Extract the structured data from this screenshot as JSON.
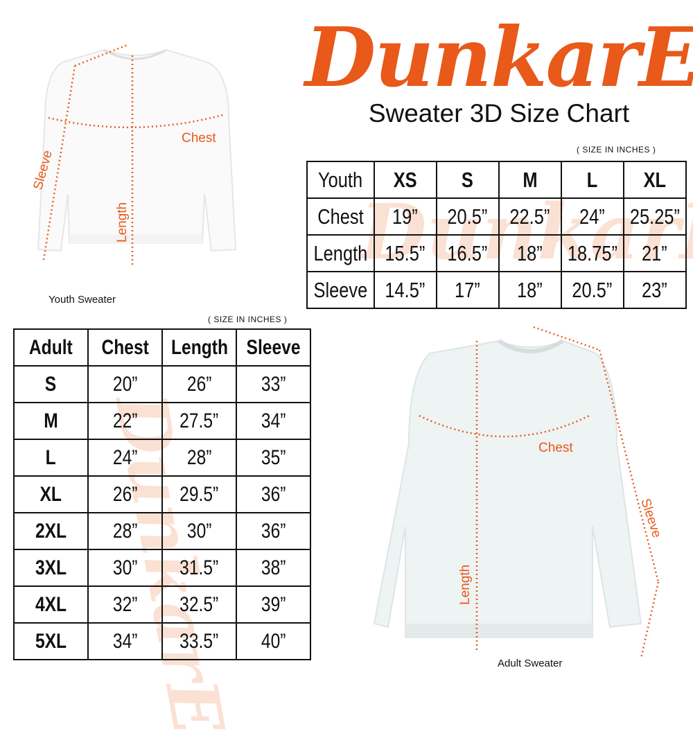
{
  "brand": {
    "logo_text": "DunkarE",
    "color": "#e8591a"
  },
  "title": "Sweater 3D Size Chart",
  "youth": {
    "units_note": "( SIZE IN INCHES )",
    "caption": "Youth Sweater",
    "labels": {
      "chest": "Chest",
      "length": "Length",
      "sleeve": "Sleeve"
    },
    "header": [
      "Youth",
      "XS",
      "S",
      "M",
      "L",
      "XL"
    ],
    "rows": [
      [
        "Chest",
        "19”",
        "20.5”",
        "22.5”",
        "24”",
        "25.25”"
      ],
      [
        "Length",
        "15.5”",
        "16.5”",
        "18”",
        "18.75”",
        "21”"
      ],
      [
        "Sleeve",
        "14.5”",
        "17”",
        "18”",
        "20.5”",
        "23”"
      ]
    ]
  },
  "adult": {
    "units_note": "( SIZE IN INCHES )",
    "caption": "Adult Sweater",
    "labels": {
      "chest": "Chest",
      "length": "Length",
      "sleeve": "Sleeve"
    },
    "header": [
      "Adult",
      "Chest",
      "Length",
      "Sleeve"
    ],
    "rows": [
      [
        "S",
        "20”",
        "26”",
        "33”"
      ],
      [
        "M",
        "22”",
        "27.5”",
        "34”"
      ],
      [
        "L",
        "24”",
        "28”",
        "35”"
      ],
      [
        "XL",
        "26”",
        "29.5”",
        "36”"
      ],
      [
        "2XL",
        "28”",
        "30”",
        "36”"
      ],
      [
        "3XL",
        "30”",
        "31.5”",
        "38”"
      ],
      [
        "4XL",
        "32”",
        "32.5”",
        "39”"
      ],
      [
        "5XL",
        "34”",
        "33.5”",
        "40”"
      ]
    ]
  }
}
